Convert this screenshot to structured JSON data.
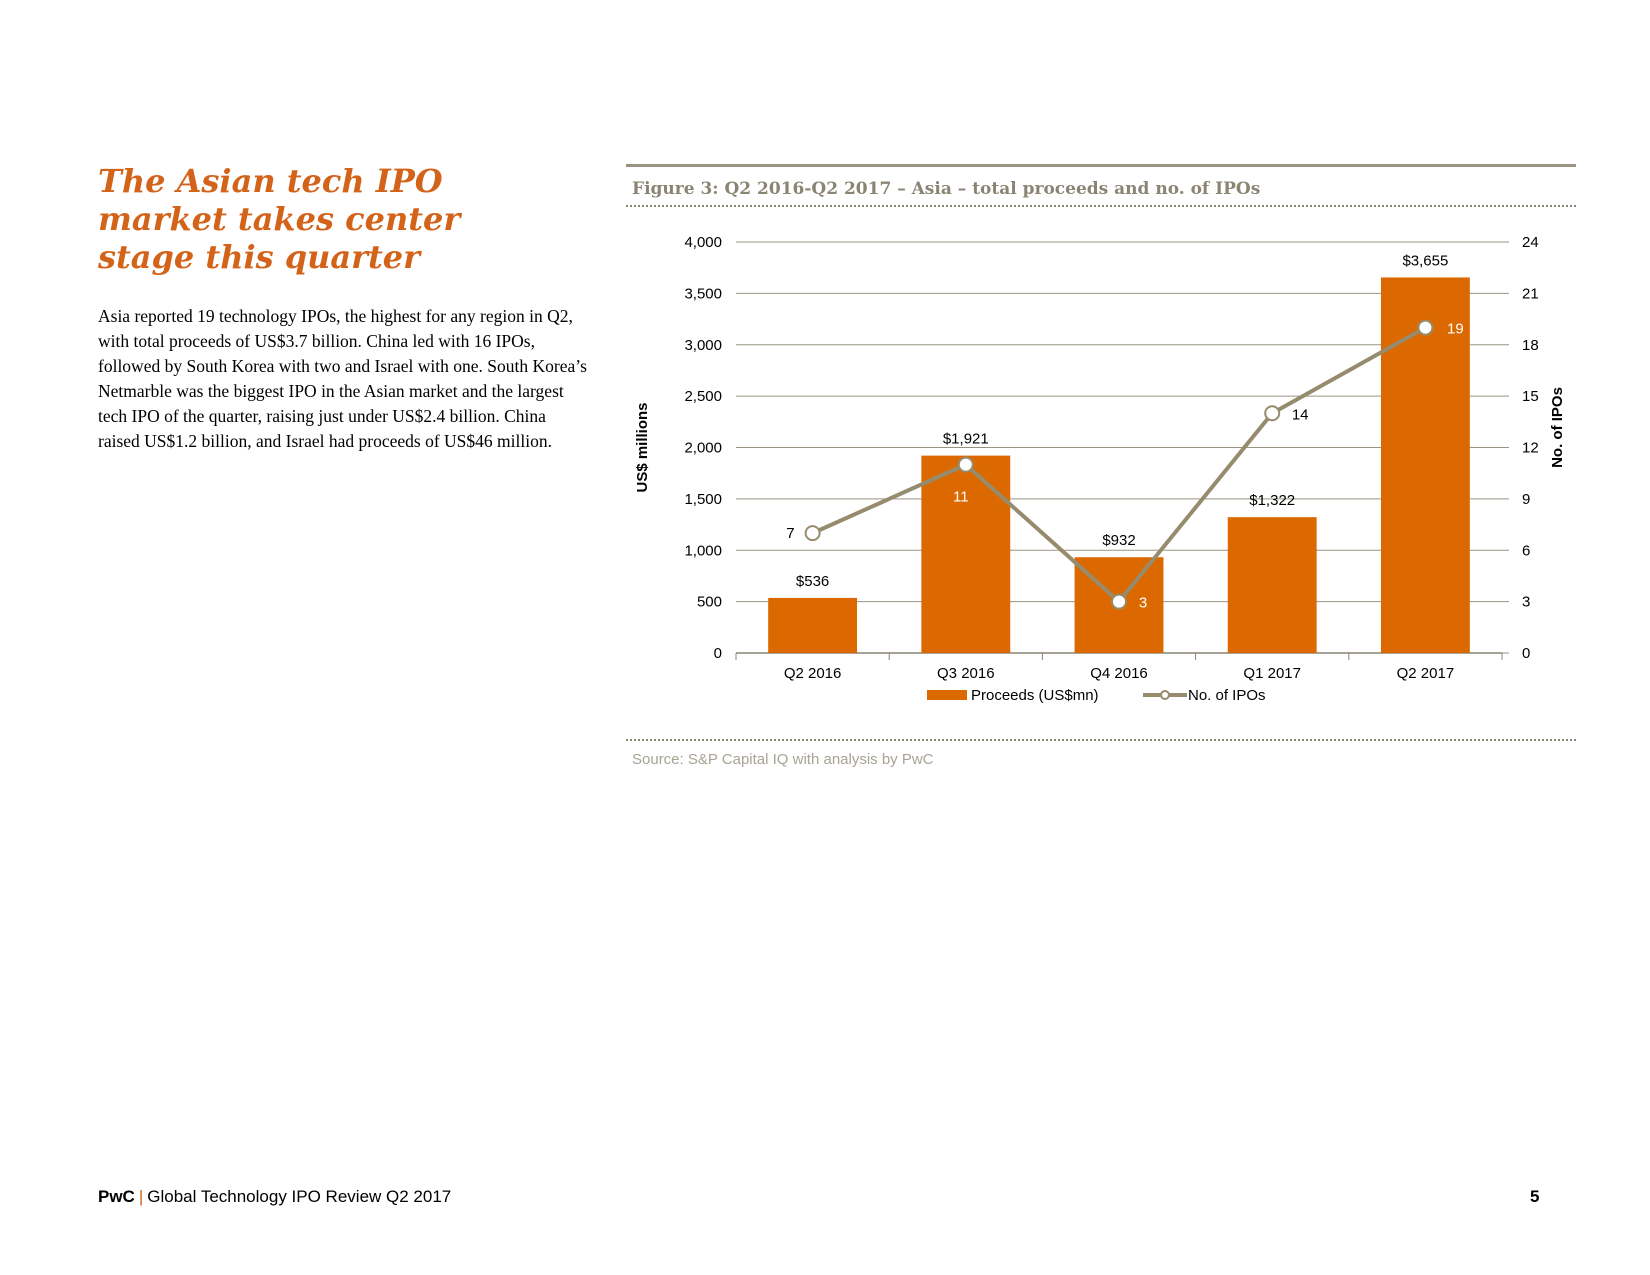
{
  "headline": "The Asian tech IPO market takes center stage this quarter",
  "body": "Asia reported 19 technology IPOs, the highest for any region in Q2, with total proceeds of US$3.7 billion. China led with 16 IPOs, followed by South Korea with two and Israel with one. South Korea’s Netmarble was the biggest IPO in the Asian market and the largest tech IPO of the quarter, raising just under US$2.4 billion. China raised US$1.2 billion, and Israel had proceeds of US$46 million.",
  "figure": {
    "title": "Figure 3: Q2 2016-Q2 2017 – Asia – total proceeds and no. of IPOs",
    "source": "Source: S&P Capital IQ with analysis by PwC"
  },
  "chart_data": {
    "type": "bar",
    "categories": [
      "Q2 2016",
      "Q3 2016",
      "Q4 2016",
      "Q1 2017",
      "Q2 2017"
    ],
    "series": [
      {
        "name": "Proceeds (US$mn)",
        "type": "bar",
        "axis": "left",
        "values": [
          536,
          1921,
          932,
          1322,
          3655
        ],
        "labels": [
          "$536",
          "$1,921",
          "$932",
          "$1,322",
          "$3,655"
        ],
        "color": "#dc6900"
      },
      {
        "name": "No. of IPOs",
        "type": "line",
        "axis": "right",
        "values": [
          7,
          11,
          3,
          14,
          19
        ],
        "labels": [
          "7",
          "11",
          "3",
          "14",
          "19"
        ],
        "color": "#968c6d"
      }
    ],
    "ylabel": "US$ millions",
    "y2label": "No. of IPOs",
    "ylim": [
      0,
      4000
    ],
    "y2lim": [
      0,
      24
    ],
    "yticks": [
      "0",
      "500",
      "1,000",
      "1,500",
      "2,000",
      "2,500",
      "3,000",
      "3,500",
      "4,000"
    ],
    "y2ticks": [
      "0",
      "3",
      "6",
      "9",
      "12",
      "15",
      "18",
      "21",
      "24"
    ],
    "grid": true,
    "legend": "bottom"
  },
  "footer": {
    "brand": "PwC",
    "separator": "|",
    "title": "Global Technology IPO Review Q2 2017",
    "page_number": "5"
  },
  "colors": {
    "accent": "#d4631a",
    "bar": "#dc6900",
    "line": "#968c6d",
    "figure_text": "#8a8473"
  }
}
